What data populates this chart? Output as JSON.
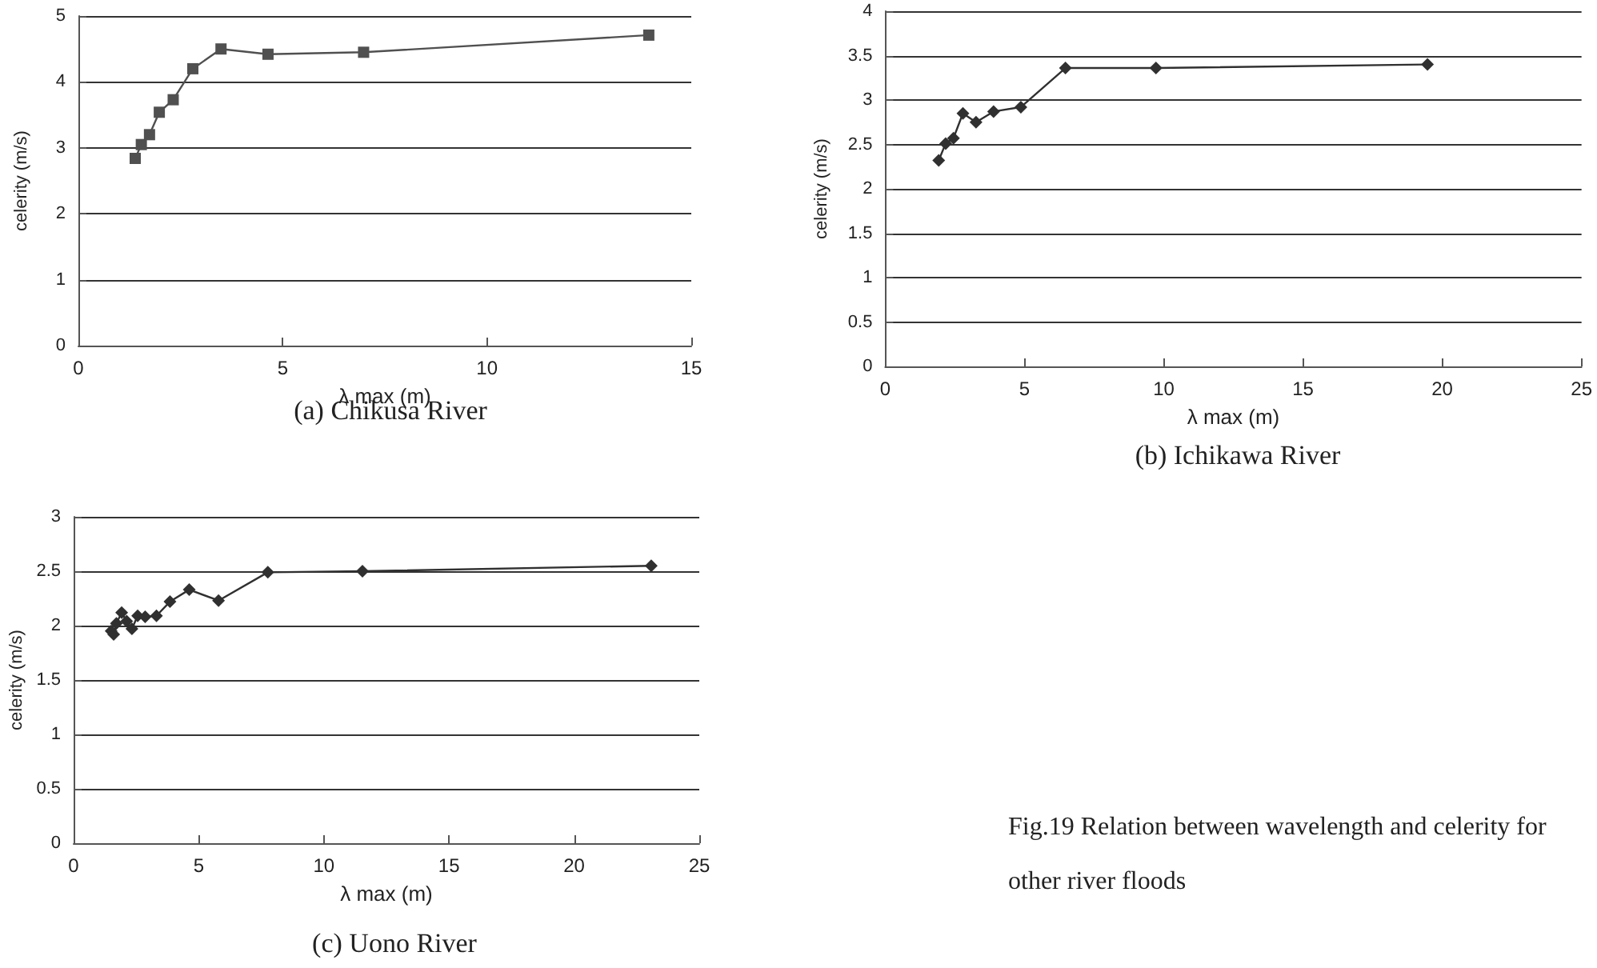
{
  "chart_data": [
    {
      "type": "line",
      "title": "(a) Chikusa River",
      "xlabel": "λ max (m)",
      "ylabel": "celerity (m/s)",
      "xlim": [
        0,
        15
      ],
      "xticks": [
        0,
        5,
        10,
        15
      ],
      "ylim": [
        0,
        5
      ],
      "yticks": [
        0,
        1,
        2,
        3,
        4,
        5
      ],
      "grid": "y",
      "marker": "square",
      "series": [
        {
          "color": "#505050",
          "x": [
            1.39,
            1.54,
            1.74,
            1.98,
            2.32,
            2.8,
            3.49,
            4.64,
            6.98,
            13.96
          ],
          "values": [
            2.84,
            3.05,
            3.2,
            3.54,
            3.73,
            4.2,
            4.5,
            4.42,
            4.45,
            4.71
          ]
        }
      ]
    },
    {
      "type": "line",
      "title": "(b) Ichikawa River",
      "xlabel": "λ max (m)",
      "ylabel": "celerity (m/s)",
      "xlim": [
        0,
        25
      ],
      "xticks": [
        0,
        5,
        10,
        15,
        20,
        25
      ],
      "ylim": [
        0,
        4
      ],
      "yticks": [
        0,
        0.5,
        1,
        1.5,
        2,
        2.5,
        3,
        3.5,
        4
      ],
      "grid": "y",
      "marker": "diamond",
      "series": [
        {
          "color": "#303030",
          "x": [
            1.92,
            2.17,
            2.45,
            2.79,
            3.26,
            3.89,
            4.87,
            6.47,
            9.72,
            19.47
          ],
          "values": [
            2.32,
            2.51,
            2.57,
            2.85,
            2.75,
            2.87,
            2.92,
            3.36,
            3.36,
            3.4
          ]
        }
      ]
    },
    {
      "type": "line",
      "title": "(c) Uono River",
      "xlabel": "λ max (m)",
      "ylabel": "celerity (m/s)",
      "xlim": [
        0,
        25
      ],
      "xticks": [
        0,
        5,
        10,
        15,
        20,
        25
      ],
      "ylim": [
        0,
        3
      ],
      "yticks": [
        0,
        0.5,
        1,
        1.5,
        2,
        2.5,
        3
      ],
      "grid": "y",
      "marker": "diamond",
      "annotations": [
        "Fig.19 Relation between wavelength and celerity for other river floods"
      ],
      "series": [
        {
          "color": "#303030",
          "x": [
            1.5,
            1.6,
            1.71,
            1.92,
            2.12,
            2.33,
            2.56,
            2.86,
            3.31,
            3.85,
            4.62,
            5.79,
            7.76,
            11.54,
            23.08
          ],
          "values": [
            1.95,
            1.92,
            2.02,
            2.12,
            2.04,
            1.97,
            2.09,
            2.08,
            2.09,
            2.22,
            2.33,
            2.23,
            2.49,
            2.5,
            2.55
          ]
        }
      ]
    }
  ]
}
